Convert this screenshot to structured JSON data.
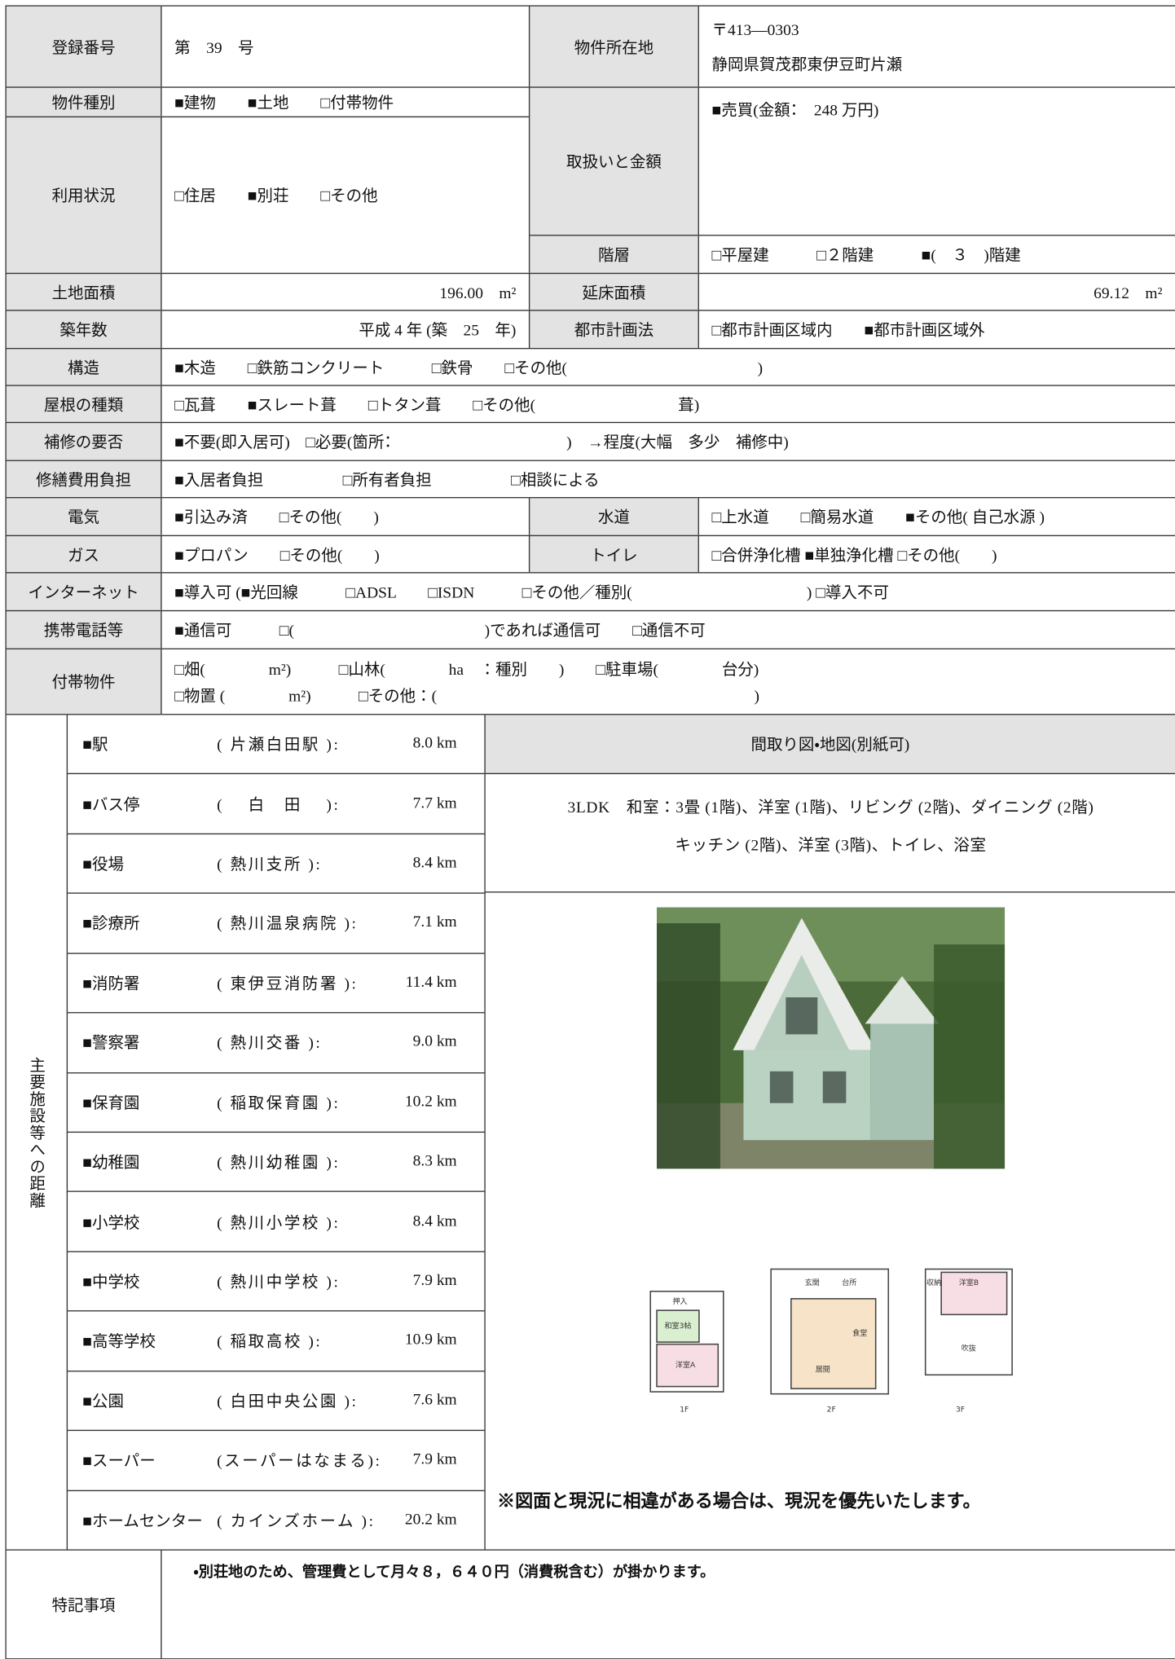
{
  "rows": [
    [
      "登録番号",
      "第　39　号",
      "物件所在地",
      "〒413―0303",
      "静岡県賀茂郡東伊豆町片瀬"
    ],
    [
      "物件種別",
      "■建物　　■土地　　□付帯物件"
    ],
    [
      "利用状況",
      "□住居　　■別荘　　□その他"
    ],
    [
      "取扱いと金額",
      "■売買(金額：　248 万円)"
    ],
    [
      "階層",
      "□平屋建　　　□２階建　　　■(　３　)階建"
    ],
    [
      "土地面積",
      "196.00　m²",
      "延床面積",
      "69.12　m²"
    ],
    [
      "築年数",
      "平成 4 年 (築　25　年)",
      "都市計画法",
      "□都市計画区域内　　■都市計画区域外"
    ],
    [
      "構造",
      "■木造　　□鉄筋コンクリート　　　□鉄骨　　□その他(　　　　　　　　　　　　)"
    ],
    [
      "屋根の種類",
      "□瓦葺　　■スレート葺　　□トタン葺　　□その他(　　　　　　　　　葺)"
    ],
    [
      "補修の要否",
      "■不要(即入居可)　□必要(箇所：　　　　　　　　　　　)　→程度(大幅　多少　補修中)"
    ],
    [
      "修繕費用負担",
      "■入居者負担　　　　　□所有者負担　　　　　□相談による"
    ],
    [
      "電気",
      "■引込み済　　□その他(　　)",
      "水道",
      "□上水道　　□簡易水道　　■その他( 自己水源 )"
    ],
    [
      "ガス",
      "■プロパン　　□その他(　　)",
      "トイレ",
      "□合併浄化槽 ■単独浄化槽 □その他(　　)"
    ],
    [
      "インターネット",
      "■導入可 (■光回線　　　□ADSL　　□ISDN　　　□その他／種別(　　　　　　　　　　　) □導入不可"
    ],
    [
      "携帯電話等",
      "■通信可　　　□(　　　　　　　　　　　　)であれば通信可　　□通信不可"
    ],
    [
      "付帯物件",
      "□畑(　　　　m²)　　　□山林(　　　　ha　：種別　　)　　□駐車場(　　　　台分)",
      "□物置 (　　　　m²)　　　□その他：(　　　　　　　　　　　　　　　　　　　　)"
    ]
  ],
  "distances": {
    "label": "主要施設等への距離",
    "items": [
      [
        "■駅",
        "( 片瀬白田駅 ):",
        "8.0 km"
      ],
      [
        "■バス停",
        "(　 白　田　 ):",
        "7.7 km"
      ],
      [
        "■役場",
        "( 熱川支所 ):",
        "8.4 km"
      ],
      [
        "■診療所",
        "( 熱川温泉病院 ):",
        "7.1 km"
      ],
      [
        "■消防署",
        "( 東伊豆消防署 ):",
        "11.4 km"
      ],
      [
        "■警察署",
        "( 熱川交番 ):",
        "9.0 km"
      ],
      [
        "■保育園",
        "( 稲取保育園 ):",
        "10.2 km"
      ],
      [
        "■幼稚園",
        "( 熱川幼稚園 ):",
        "8.3 km"
      ],
      [
        "■小学校",
        "( 熱川小学校 ):",
        "8.4 km"
      ],
      [
        "■中学校",
        "( 熱川中学校 ):",
        "7.9 km"
      ],
      [
        "■高等学校",
        "( 稲取高校 ):",
        "10.9 km"
      ],
      [
        "■公園",
        "( 白田中央公園 ):",
        "7.6 km"
      ],
      [
        "■スーパー",
        "(スーパーはなまる):",
        "7.9 km"
      ],
      [
        "■ホームセンター",
        "( カインズホーム ):",
        "20.2 km"
      ]
    ]
  },
  "layout": {
    "heading": "間取り図・地図(別紙可)",
    "lines": [
      "3LDK　和室：3畳 (1階)、洋室 (1階)、リビング (2階)、ダイニング (2階)",
      "キッチン (2階)、洋室 (3階)、トイレ、浴室"
    ],
    "floorplan": {
      "floor_1": "1F",
      "floor_2": "2F",
      "floor_3": "3F",
      "oshiire": "押入",
      "washitsu": "和室3帖",
      "youshitsu_a": "洋室A",
      "genkan": "玄関",
      "daidokoro": "台所",
      "shokudo": "食堂",
      "ima": "居間",
      "youshitsu_b": "洋室B",
      "fukinuke": "吹抜",
      "shuno": "収納"
    },
    "notice": "※図面と現況に相違がある場合は、現況を優先いたします。"
  },
  "remarks": {
    "label": "特記事項",
    "text": "・別荘地のため、管理費として月々８，６４０円（消費税含む）が掛かります。"
  }
}
